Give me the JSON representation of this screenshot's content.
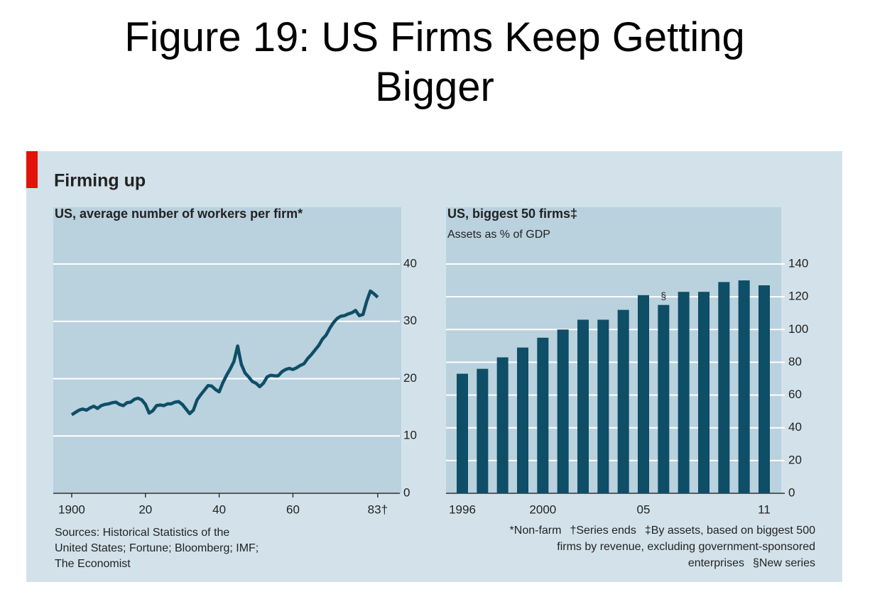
{
  "title": "Figure 19: US Firms Keep Getting Bigger",
  "panel_title": "Firming up",
  "sources": "Sources: Historical Statistics of the United States; Fortune; Bloomberg; IMF; The Economist",
  "footnotes": [
    "*Non-farm",
    "†Series ends",
    "‡By assets, based on biggest 500 firms by revenue, excluding government-sponsored enterprises",
    "§New series"
  ],
  "chart_data": [
    {
      "type": "line",
      "title": "US, average number of workers per firm*",
      "color": "#0e4e66",
      "grid": true,
      "x": [
        1900,
        1901,
        1902,
        1903,
        1904,
        1905,
        1906,
        1907,
        1908,
        1909,
        1910,
        1911,
        1912,
        1913,
        1914,
        1915,
        1916,
        1917,
        1918,
        1919,
        1920,
        1921,
        1922,
        1923,
        1924,
        1925,
        1926,
        1927,
        1928,
        1929,
        1930,
        1931,
        1932,
        1933,
        1934,
        1935,
        1936,
        1937,
        1938,
        1939,
        1940,
        1941,
        1942,
        1943,
        1944,
        1945,
        1946,
        1947,
        1948,
        1949,
        1950,
        1951,
        1952,
        1953,
        1954,
        1955,
        1956,
        1957,
        1958,
        1959,
        1960,
        1961,
        1962,
        1963,
        1964,
        1965,
        1966,
        1967,
        1968,
        1969,
        1970,
        1971,
        1972,
        1973,
        1974,
        1975,
        1976,
        1977,
        1978,
        1979,
        1980,
        1981,
        1982,
        1983
      ],
      "values": [
        13.7,
        14.1,
        14.5,
        14.7,
        14.5,
        14.9,
        15.2,
        14.8,
        15.3,
        15.5,
        15.6,
        15.8,
        15.9,
        15.5,
        15.3,
        15.8,
        15.9,
        16.4,
        16.6,
        16.3,
        15.5,
        14.0,
        14.4,
        15.3,
        15.4,
        15.3,
        15.6,
        15.6,
        15.9,
        16.0,
        15.5,
        14.7,
        13.9,
        14.5,
        16.3,
        17.2,
        18.0,
        18.8,
        18.7,
        18.1,
        17.7,
        19.3,
        20.6,
        21.7,
        23.0,
        25.7,
        22.5,
        21.0,
        20.3,
        19.5,
        19.2,
        18.6,
        19.2,
        20.3,
        20.6,
        20.5,
        20.5,
        21.2,
        21.6,
        21.8,
        21.6,
        21.9,
        22.3,
        22.6,
        23.5,
        24.2,
        25.0,
        25.8,
        26.9,
        27.6,
        28.8,
        29.8,
        30.5,
        30.9,
        31.0,
        31.3,
        31.5,
        31.9,
        31.0,
        31.2,
        33.5,
        35.3,
        34.8,
        34.2
      ],
      "xlim": [
        1895,
        1989
      ],
      "xticks": [
        1900,
        {
          "value": 1920,
          "label": "20"
        },
        {
          "value": 1940,
          "label": "40"
        },
        {
          "value": 1960,
          "label": "60"
        },
        {
          "value": 1983,
          "label": "83†"
        }
      ],
      "ylim": [
        0,
        40
      ],
      "yticks": [
        0,
        10,
        20,
        30,
        40
      ]
    },
    {
      "type": "bar",
      "title": "US, biggest 50 firms‡",
      "subtitle": "Assets as % of GDP",
      "color": "#0e4e66",
      "grid": true,
      "categories": [
        "1996",
        null,
        null,
        null,
        "2000",
        null,
        null,
        null,
        null,
        "05",
        null,
        null,
        null,
        null,
        null,
        "11"
      ],
      "values": [
        73,
        76,
        83,
        89,
        95,
        100,
        106,
        106,
        112,
        121,
        115,
        123,
        123,
        129,
        130,
        127
      ],
      "annotation": "§",
      "ylim": [
        0,
        140
      ],
      "yticks": [
        0,
        20,
        40,
        60,
        80,
        100,
        120,
        140
      ]
    }
  ]
}
